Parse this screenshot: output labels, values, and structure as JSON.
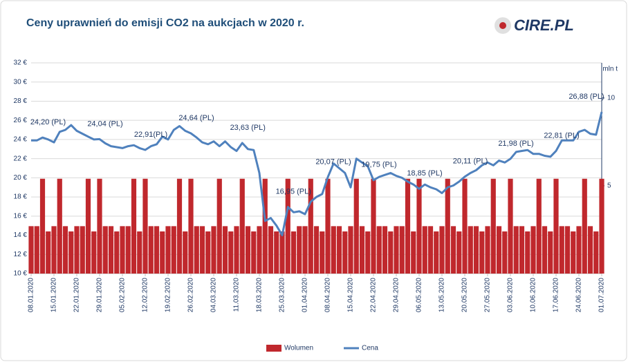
{
  "logo": "CIRE.PL",
  "chart_data": {
    "type": "bar-line",
    "title": "Ceny uprawnień do emisji CO2 na aukcjach w 2020 r.",
    "y2_label": "mln t",
    "categories": [
      "08.01.2020",
      null,
      null,
      null,
      "15.01.2020",
      null,
      null,
      null,
      "22.01.2020",
      null,
      null,
      null,
      "29.01.2020",
      null,
      null,
      null,
      "05.02.2020",
      null,
      null,
      null,
      "12.02.2020",
      null,
      null,
      null,
      "19.02.2020",
      null,
      null,
      null,
      "26.02.2020",
      null,
      null,
      null,
      "04.03.2020",
      null,
      null,
      null,
      "11.03.2020",
      null,
      null,
      null,
      "18.03.2020",
      null,
      null,
      null,
      "25.03.2020",
      null,
      null,
      null,
      "01.04.2020",
      null,
      null,
      null,
      "08.04.2020",
      null,
      null,
      null,
      "15.04.2020",
      null,
      null,
      null,
      "22.04.2020",
      null,
      null,
      null,
      "29.04.2020",
      null,
      null,
      null,
      "06.05.2020",
      null,
      null,
      null,
      "13.05.2020",
      null,
      null,
      null,
      "20.05.2020",
      null,
      null,
      null,
      "27.05.2020",
      null,
      null,
      null,
      "03.06.2020",
      null,
      null,
      null,
      "10.06.2020",
      null,
      null,
      null,
      "17.06.2020",
      null,
      null,
      null,
      "24.06.2020",
      null,
      null,
      null,
      "01.07.2020"
    ],
    "series": [
      {
        "name": "Wolumen",
        "color": "#c0282d",
        "axis": "y2",
        "values": [
          2.7,
          2.7,
          5.4,
          2.4,
          2.7,
          5.4,
          2.7,
          2.4,
          2.7,
          2.7,
          5.4,
          2.4,
          5.4,
          2.7,
          2.7,
          2.4,
          2.7,
          2.7,
          5.4,
          2.4,
          5.4,
          2.7,
          2.7,
          2.4,
          2.7,
          2.7,
          5.4,
          2.4,
          5.4,
          2.7,
          2.7,
          2.4,
          2.7,
          5.4,
          2.7,
          2.4,
          2.7,
          5.4,
          2.7,
          2.4,
          2.7,
          5.4,
          2.7,
          2.4,
          2.4,
          5.4,
          2.4,
          2.7,
          2.7,
          5.4,
          2.7,
          2.4,
          5.4,
          2.7,
          2.7,
          2.4,
          2.7,
          5.4,
          2.7,
          2.4,
          5.4,
          2.7,
          2.7,
          2.4,
          2.7,
          2.7,
          5.4,
          2.4,
          5.4,
          2.7,
          2.7,
          2.4,
          2.7,
          5.4,
          2.7,
          2.4,
          5.4,
          2.7,
          2.7,
          2.4,
          2.7,
          5.4,
          2.7,
          2.4,
          5.4,
          2.7,
          2.7,
          2.4,
          2.7,
          5.4,
          2.7,
          2.4,
          5.4,
          2.7,
          2.7,
          2.4,
          2.7,
          5.4,
          2.7,
          2.4,
          5.4
        ]
      },
      {
        "name": "Cena",
        "color": "#4f81bd",
        "values": [
          23.9,
          23.9,
          24.2,
          24.0,
          23.7,
          24.8,
          25.0,
          25.5,
          24.9,
          24.6,
          24.3,
          24.0,
          24.04,
          23.6,
          23.3,
          23.2,
          23.1,
          23.3,
          23.4,
          23.1,
          22.91,
          23.3,
          23.5,
          24.3,
          24.0,
          25.0,
          25.4,
          24.9,
          24.64,
          24.2,
          23.7,
          23.5,
          23.8,
          23.3,
          23.8,
          23.2,
          22.8,
          23.63,
          23.0,
          22.9,
          20.5,
          15.5,
          15.8,
          15.0,
          14.0,
          16.95,
          16.4,
          16.5,
          16.2,
          17.5,
          18.0,
          18.3,
          20.07,
          21.5,
          21.0,
          20.5,
          19.0,
          22.0,
          21.6,
          21.2,
          19.75,
          20.1,
          20.3,
          20.5,
          20.2,
          20.0,
          19.6,
          19.3,
          18.85,
          19.3,
          19.0,
          18.8,
          18.4,
          19.0,
          19.2,
          19.6,
          20.11,
          20.5,
          20.8,
          21.3,
          21.6,
          21.3,
          21.8,
          21.6,
          21.98,
          22.7,
          22.8,
          22.9,
          22.5,
          22.5,
          22.3,
          22.2,
          22.81,
          23.9,
          23.9,
          23.9,
          24.8,
          25.0,
          24.6,
          24.5,
          26.88
        ],
        "value_labels": [
          null,
          null,
          "24,20 (PL)",
          null,
          null,
          null,
          null,
          null,
          null,
          null,
          null,
          null,
          "24,04 (PL)",
          null,
          null,
          null,
          null,
          null,
          null,
          null,
          "22,91(PL)",
          null,
          null,
          null,
          null,
          null,
          null,
          null,
          "24,64 (PL)",
          null,
          null,
          null,
          null,
          null,
          null,
          null,
          null,
          "23,63 (PL)",
          null,
          null,
          null,
          null,
          null,
          null,
          null,
          "16,95 (PL)",
          null,
          null,
          null,
          null,
          null,
          null,
          "20,07 (PL)",
          null,
          null,
          null,
          null,
          null,
          null,
          null,
          "19,75 (PL)",
          null,
          null,
          null,
          null,
          null,
          null,
          null,
          "18,85 (PL)",
          null,
          null,
          null,
          null,
          null,
          null,
          null,
          "20,11 (PL)",
          null,
          null,
          null,
          null,
          null,
          null,
          null,
          "21,98 (PL)",
          null,
          null,
          null,
          null,
          null,
          null,
          null,
          "22,81 (PL)",
          null,
          null,
          null,
          null,
          null,
          null,
          null,
          "26,88 (PL)"
        ]
      }
    ],
    "ylim": [
      10,
      32
    ],
    "yticks": [
      {
        "value": 10,
        "label": "10 €"
      },
      {
        "value": 12,
        "label": "12 €"
      },
      {
        "value": 14,
        "label": "14 €"
      },
      {
        "value": 16,
        "label": "16 €"
      },
      {
        "value": 18,
        "label": "18 €"
      },
      {
        "value": 20,
        "label": "20 €"
      },
      {
        "value": 22,
        "label": "22 €"
      },
      {
        "value": 24,
        "label": "24 €"
      },
      {
        "value": 26,
        "label": "26 €"
      },
      {
        "value": 28,
        "label": "28 €"
      },
      {
        "value": 30,
        "label": "30 €"
      },
      {
        "value": 32,
        "label": "32 €"
      }
    ],
    "y2lim": [
      0,
      12
    ],
    "y2ticks": [
      5,
      10
    ],
    "grid": true,
    "legend": "bottom"
  }
}
